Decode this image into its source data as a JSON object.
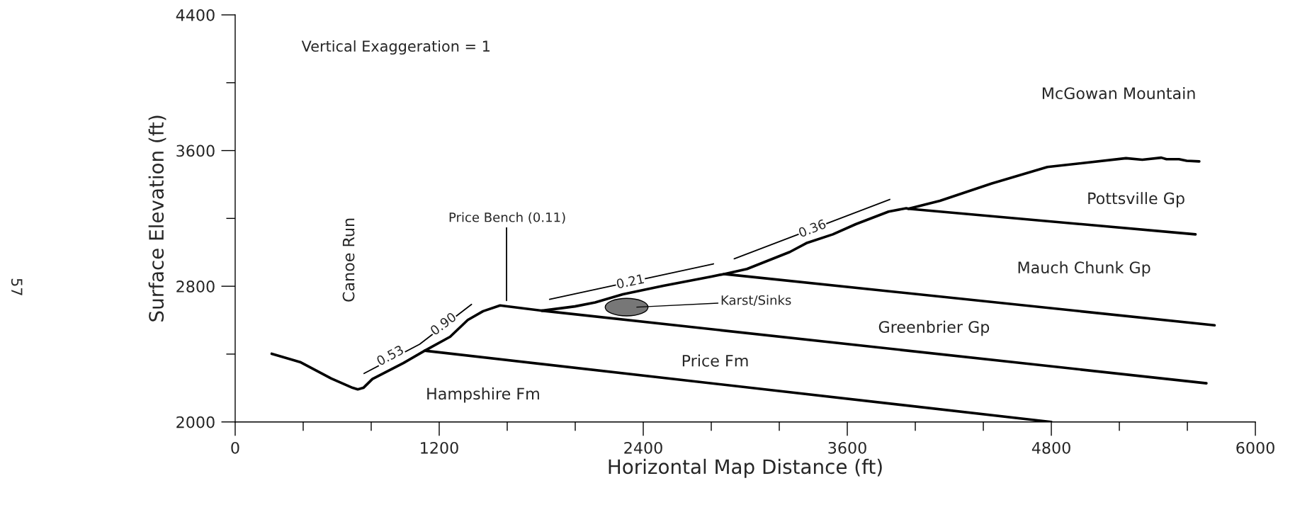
{
  "chart_data": {
    "type": "line",
    "xlabel": "Horizontal Map Distance (ft)",
    "ylabel": "Surface Elevation (ft)",
    "xlim": [
      0,
      6000
    ],
    "ylim": [
      2000,
      4400
    ],
    "xticks": [
      0,
      {
        "value": 400,
        "label": null
      },
      {
        "value": 800,
        "label": null
      },
      1200,
      {
        "value": 1600,
        "label": null
      },
      {
        "value": 2000,
        "label": null
      },
      2400,
      {
        "value": 2800,
        "label": null
      },
      {
        "value": 3200,
        "label": null
      },
      3600,
      {
        "value": 4000,
        "label": null
      },
      {
        "value": 4400,
        "label": null
      },
      4800,
      {
        "value": 5200,
        "label": null
      },
      {
        "value": 5600,
        "label": null
      },
      6000
    ],
    "yticks": [
      2000,
      {
        "value": 2400,
        "label": null
      },
      2800,
      {
        "value": 3200,
        "label": null
      },
      3600,
      {
        "value": 4000,
        "label": null
      },
      4400
    ],
    "grid": false,
    "legend": false,
    "marker": "none",
    "line_style": "solid",
    "series": [
      {
        "color": "#000000",
        "x": [
          215,
          382,
          565,
          691,
          721,
          754,
          807,
          989,
          1115,
          1264,
          1368,
          1458,
          1558,
          1804,
          1998,
          2117,
          2280,
          2518,
          2801,
          2875,
          3010,
          3262,
          3359,
          3515,
          3650,
          3843,
          3947,
          3959,
          4145,
          4450,
          4777,
          5239,
          5335,
          5447,
          5477,
          5551,
          5596,
          5670
        ],
        "values": [
          2402,
          2353,
          2256,
          2201,
          2192,
          2201,
          2253,
          2347,
          2420,
          2502,
          2601,
          2653,
          2687,
          2656,
          2681,
          2705,
          2753,
          2803,
          2857,
          2872,
          2902,
          3002,
          3054,
          3106,
          3166,
          3240,
          3260,
          3257,
          3304,
          3406,
          3503,
          3555,
          3546,
          3558,
          3549,
          3549,
          3540,
          3536
        ]
      },
      {
        "color": "#000000",
        "x": [
          1115,
          4800
        ],
        "values": [
          2420,
          2000
        ]
      },
      {
        "color": "#000000",
        "x": [
          1804,
          5712
        ],
        "values": [
          2656,
          2228
        ]
      },
      {
        "color": "#000000",
        "x": [
          2875,
          5760
        ],
        "values": [
          2872,
          2570
        ]
      },
      {
        "color": "#000000",
        "x": [
          3959,
          5648
        ],
        "values": [
          3257,
          3106
        ]
      },
      {
        "type": "line",
        "color": "#000000",
        "x": [
          758,
          1085,
          1390
        ],
        "values": [
          2286,
          2458,
          2693
        ]
      },
      {
        "type": "line",
        "color": "#000000",
        "x": [
          1849,
          2813
        ],
        "values": [
          2723,
          2932
        ]
      },
      {
        "type": "line",
        "color": "#000000",
        "x": [
          2935,
          3850
        ],
        "values": [
          2962,
          3312
        ]
      },
      {
        "type": "line",
        "color": "#000000",
        "x": [
          1596,
          1596
        ],
        "values": [
          2716,
          3144
        ]
      }
    ],
    "annotations": [
      "Vertical Exaggeration = 1",
      "57",
      "Canoe Run",
      "Price Bench (0.11)",
      "Karst/Sinks",
      "Hampshire Fm",
      "Price Fm",
      "Greenbrier Gp",
      "Mauch Chunk Gp",
      "Pottsville Gp",
      "McGowan Mountain",
      {
        "text": "0.53",
        "x": 914,
        "y": 2387
      },
      {
        "text": "0.90",
        "x": 1227,
        "y": 2574
      },
      {
        "text": "0.21",
        "x": 2325,
        "y": 2823
      },
      {
        "text": "0.36",
        "x": 3396,
        "y": 3136
      }
    ]
  }
}
